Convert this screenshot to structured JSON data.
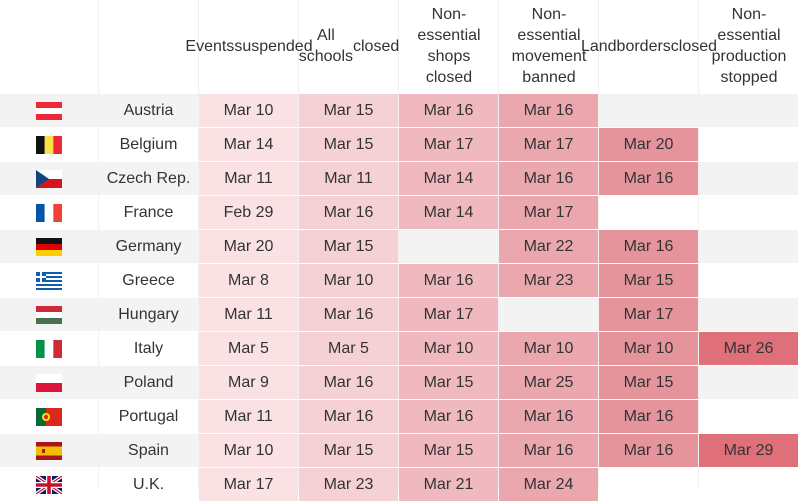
{
  "chart_data": {
    "type": "table",
    "columns": [
      "Events suspended",
      "All schools closed",
      "Non-essential shops closed",
      "Non-essential movement banned",
      "Land borders closed",
      "Non-essential production stopped"
    ],
    "rows": [
      {
        "country": "Austria",
        "flag": "austria-flag-icon",
        "values": [
          "Mar 10",
          "Mar 15",
          "Mar 16",
          "Mar 16",
          "",
          ""
        ]
      },
      {
        "country": "Belgium",
        "flag": "belgium-flag-icon",
        "values": [
          "Mar 14",
          "Mar 15",
          "Mar 17",
          "Mar 17",
          "Mar 20",
          ""
        ]
      },
      {
        "country": "Czech Rep.",
        "flag": "czech-flag-icon",
        "values": [
          "Mar 11",
          "Mar 11",
          "Mar 14",
          "Mar 16",
          "Mar 16",
          ""
        ]
      },
      {
        "country": "France",
        "flag": "france-flag-icon",
        "values": [
          "Feb 29",
          "Mar 16",
          "Mar 14",
          "Mar 17",
          "",
          ""
        ]
      },
      {
        "country": "Germany",
        "flag": "germany-flag-icon",
        "values": [
          "Mar 20",
          "Mar 15",
          "",
          "Mar 22",
          "Mar 16",
          ""
        ]
      },
      {
        "country": "Greece",
        "flag": "greece-flag-icon",
        "values": [
          "Mar 8",
          "Mar 10",
          "Mar 16",
          "Mar 23",
          "Mar 15",
          ""
        ]
      },
      {
        "country": "Hungary",
        "flag": "hungary-flag-icon",
        "values": [
          "Mar 11",
          "Mar 16",
          "Mar 17",
          "",
          "Mar 17",
          ""
        ]
      },
      {
        "country": "Italy",
        "flag": "italy-flag-icon",
        "values": [
          "Mar 5",
          "Mar 5",
          "Mar 10",
          "Mar 10",
          "Mar 10",
          "Mar 26"
        ]
      },
      {
        "country": "Poland",
        "flag": "poland-flag-icon",
        "values": [
          "Mar 9",
          "Mar 16",
          "Mar 15",
          "Mar 25",
          "Mar 15",
          ""
        ]
      },
      {
        "country": "Portugal",
        "flag": "portugal-flag-icon",
        "values": [
          "Mar 11",
          "Mar 16",
          "Mar 16",
          "Mar 16",
          "Mar 16",
          ""
        ]
      },
      {
        "country": "Spain",
        "flag": "spain-flag-icon",
        "values": [
          "Mar 10",
          "Mar 15",
          "Mar 15",
          "Mar 16",
          "Mar 16",
          "Mar 29"
        ]
      },
      {
        "country": "U.K.",
        "flag": "uk-flag-icon",
        "values": [
          "Mar 17",
          "Mar 23",
          "Mar 21",
          "Mar 24",
          "",
          ""
        ]
      }
    ],
    "column_colors": [
      "#f9e1e4",
      "#f5d0d4",
      "#efb9bf",
      "#eaa7ae",
      "#e5949c",
      "#df7079"
    ],
    "stripe_color": "#f3f3f3"
  }
}
